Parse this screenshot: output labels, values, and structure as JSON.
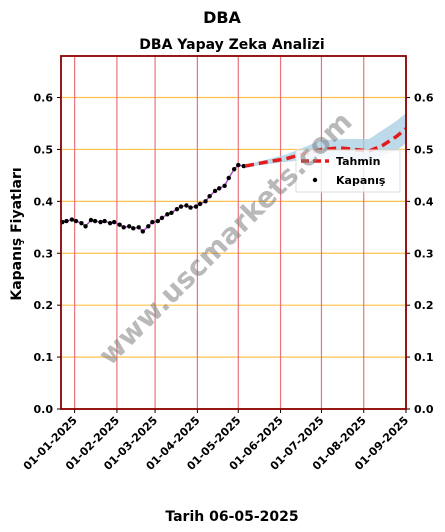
{
  "chart_data": {
    "type": "line",
    "suptitle": "DBA",
    "title": "DBA Yapay Zeka Analizi",
    "xlabel": "Tarih 06-05-2025",
    "ylabel": "Kapanış Fiyatları",
    "ylim": [
      0,
      0.68
    ],
    "xlim": [
      "2024-12-22",
      "2025-09-01"
    ],
    "yticks": [
      0.0,
      0.1,
      0.2,
      0.3,
      0.4,
      0.5,
      0.6
    ],
    "ytick_labels": [
      "0.0",
      "0.1",
      "0.2",
      "0.3",
      "0.4",
      "0.5",
      "0.6"
    ],
    "xticks": [
      "2025-01-01",
      "2025-02-01",
      "2025-03-01",
      "2025-04-01",
      "2025-05-01",
      "2025-06-01",
      "2025-07-01",
      "2025-08-01",
      "2025-09-01"
    ],
    "xtick_labels": [
      "01-01-2025",
      "01-02-2025",
      "01-03-2025",
      "01-04-2025",
      "01-05-2025",
      "01-06-2025",
      "01-07-2025",
      "01-08-2025",
      "01-09-2025"
    ],
    "grid": {
      "horizontal": true,
      "vertical": true,
      "horizontal_color": "#ffc04d",
      "vertical_color": "#e8737b"
    },
    "legend": {
      "placement": "right",
      "entries": [
        "Tahmin",
        "Kapanış"
      ]
    },
    "watermark": "www.uscmarkets.com",
    "colors": {
      "closing": "#000000",
      "forecast": "#e41a1c",
      "band": "#a6cde2",
      "fit": "#b04cc8",
      "frame": "#8b0000"
    },
    "series": [
      {
        "name": "Kapanış",
        "style": "points",
        "points": [
          [
            "2024-12-23",
            0.36
          ],
          [
            "2024-12-26",
            0.362
          ],
          [
            "2024-12-30",
            0.365
          ],
          [
            "2025-01-02",
            0.362
          ],
          [
            "2025-01-06",
            0.358
          ],
          [
            "2025-01-09",
            0.352
          ],
          [
            "2025-01-13",
            0.364
          ],
          [
            "2025-01-16",
            0.362
          ],
          [
            "2025-01-20",
            0.36
          ],
          [
            "2025-01-23",
            0.362
          ],
          [
            "2025-01-27",
            0.358
          ],
          [
            "2025-01-30",
            0.36
          ],
          [
            "2025-02-03",
            0.355
          ],
          [
            "2025-02-06",
            0.35
          ],
          [
            "2025-02-10",
            0.352
          ],
          [
            "2025-02-13",
            0.348
          ],
          [
            "2025-02-17",
            0.35
          ],
          [
            "2025-02-20",
            0.342
          ],
          [
            "2025-02-24",
            0.352
          ],
          [
            "2025-02-27",
            0.36
          ],
          [
            "2025-03-03",
            0.362
          ],
          [
            "2025-03-06",
            0.368
          ],
          [
            "2025-03-10",
            0.375
          ],
          [
            "2025-03-13",
            0.378
          ],
          [
            "2025-03-17",
            0.385
          ],
          [
            "2025-03-20",
            0.39
          ],
          [
            "2025-03-24",
            0.392
          ],
          [
            "2025-03-27",
            0.388
          ],
          [
            "2025-03-31",
            0.39
          ],
          [
            "2025-04-03",
            0.395
          ],
          [
            "2025-04-07",
            0.4
          ],
          [
            "2025-04-10",
            0.41
          ],
          [
            "2025-04-14",
            0.42
          ],
          [
            "2025-04-17",
            0.425
          ],
          [
            "2025-04-21",
            0.43
          ],
          [
            "2025-04-24",
            0.445
          ],
          [
            "2025-04-28",
            0.462
          ],
          [
            "2025-05-01",
            0.47
          ],
          [
            "2025-05-05",
            0.468
          ]
        ]
      },
      {
        "name": "Tahmin",
        "style": "dashed-line",
        "points": [
          [
            "2025-05-06",
            0.468
          ],
          [
            "2025-05-20",
            0.475
          ],
          [
            "2025-06-05",
            0.482
          ],
          [
            "2025-06-20",
            0.493
          ],
          [
            "2025-07-01",
            0.5
          ],
          [
            "2025-07-15",
            0.503
          ],
          [
            "2025-07-25",
            0.5
          ],
          [
            "2025-08-05",
            0.497
          ],
          [
            "2025-08-15",
            0.508
          ],
          [
            "2025-08-25",
            0.525
          ],
          [
            "2025-09-01",
            0.54
          ]
        ]
      },
      {
        "name": "",
        "style": "band",
        "upper": [
          [
            "2025-05-06",
            0.47
          ],
          [
            "2025-06-05",
            0.49
          ],
          [
            "2025-07-01",
            0.518
          ],
          [
            "2025-07-20",
            0.52
          ],
          [
            "2025-08-05",
            0.52
          ],
          [
            "2025-08-25",
            0.555
          ],
          [
            "2025-09-01",
            0.57
          ]
        ],
        "lower": [
          [
            "2025-05-06",
            0.466
          ],
          [
            "2025-06-05",
            0.476
          ],
          [
            "2025-07-01",
            0.484
          ],
          [
            "2025-07-20",
            0.484
          ],
          [
            "2025-08-05",
            0.478
          ],
          [
            "2025-08-25",
            0.498
          ],
          [
            "2025-09-01",
            0.512
          ]
        ]
      }
    ]
  }
}
